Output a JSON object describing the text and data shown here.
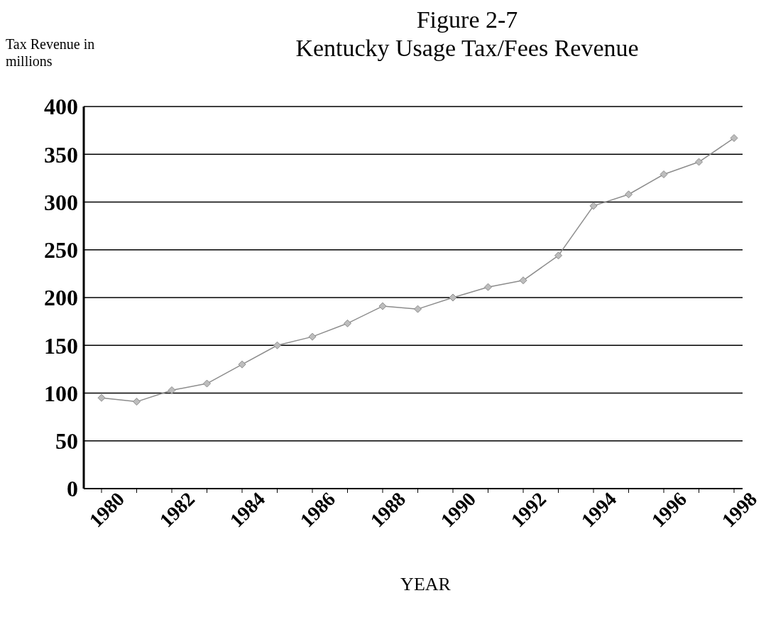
{
  "chart_data": {
    "type": "line",
    "title": "Figure 2-7",
    "subtitle": "Kentucky Usage Tax/Fees Revenue",
    "ylabel": "Tax Revenue in millions",
    "xlabel": "YEAR",
    "categories": [
      "1980",
      null,
      "1982",
      null,
      "1984",
      null,
      "1986",
      null,
      "1988",
      null,
      "1990",
      null,
      "1992",
      null,
      "1994",
      null,
      "1996",
      null,
      "1998"
    ],
    "series": [
      {
        "color": "#8c8c8c",
        "values": [
          95,
          91,
          103,
          110,
          130,
          150,
          159,
          173,
          191,
          188,
          200,
          211,
          218,
          244,
          296,
          308,
          329,
          342,
          367
        ]
      }
    ],
    "ylim": [
      0,
      400
    ],
    "yticks": [
      0,
      50,
      100,
      150,
      200,
      250,
      300,
      350,
      400
    ],
    "grid": "y",
    "legend": false,
    "marker": "diamond",
    "line_style": "solid"
  }
}
